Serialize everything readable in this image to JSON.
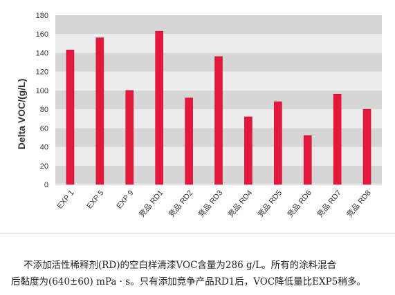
{
  "chart_data": {
    "type": "bar",
    "ylabel": "Delta VOC/(g/L)",
    "ylim": [
      0,
      180
    ],
    "yticks": [
      0,
      20,
      40,
      60,
      80,
      100,
      120,
      140,
      160,
      180
    ],
    "categories": [
      "EXP 1",
      "EXP 5",
      "EXP 9",
      "竞品 RD1",
      "竞品 RD2",
      "竞品 RD3",
      "竞品 RD4",
      "竞品 RD5",
      "竞品 RD6",
      "竞品 RD7",
      "竞品 RD8"
    ],
    "values": [
      143,
      156,
      100,
      163,
      92,
      136,
      72,
      88,
      52,
      96,
      80
    ],
    "grid": "horizontal bands",
    "legend": "none"
  },
  "colors": {
    "bar": "#e3183c",
    "band_dark": "#d6d6d6",
    "band_light": "#ececec",
    "axis_text": "#333333"
  },
  "caption": {
    "line1": "不添加活性稀释剂(RD)的空白样清漆VOC含量为286 g/L。所有的涂料混合",
    "line2": "后黏度为(640±60) mPa · s。只有添加竞争产品RD1后，VOC降低量比EXP5稍多。"
  }
}
